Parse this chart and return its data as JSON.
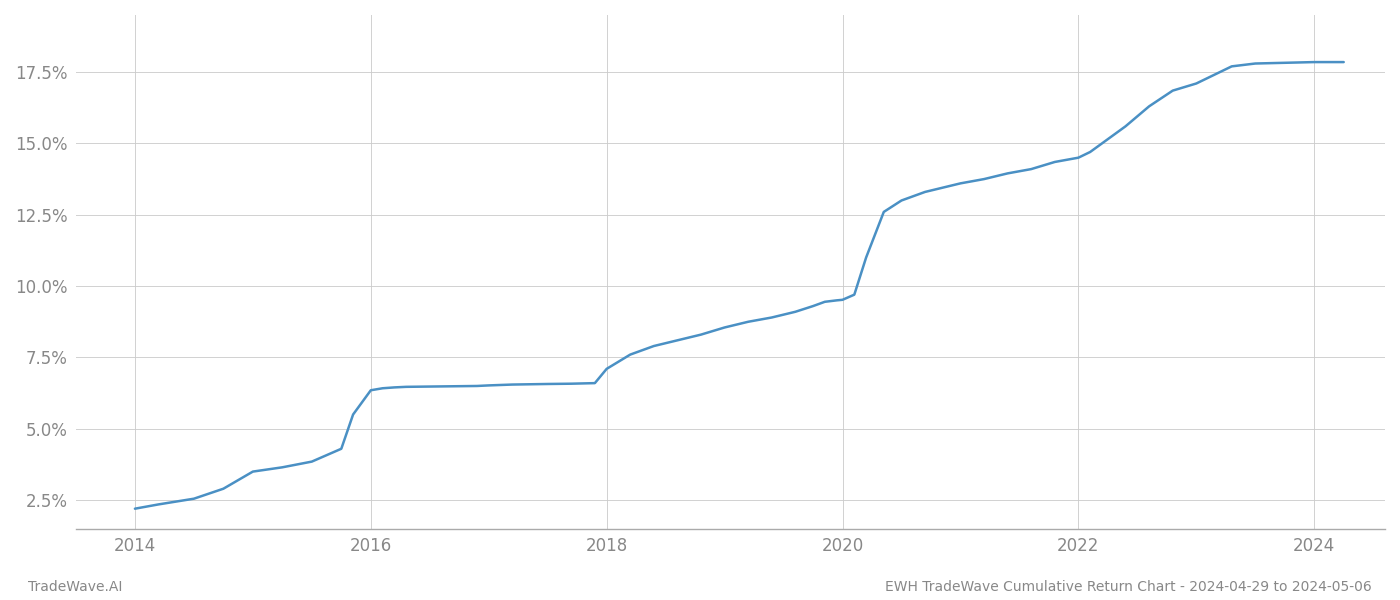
{
  "title": "EWH TradeWave Cumulative Return Chart - 2024-04-29 to 2024-05-06",
  "left_label": "TradeWave.AI",
  "line_color": "#4a90c4",
  "background_color": "#ffffff",
  "grid_color": "#cccccc",
  "x_values": [
    2014.0,
    2014.2,
    2014.5,
    2014.75,
    2015.0,
    2015.25,
    2015.5,
    2015.75,
    2015.85,
    2016.0,
    2016.1,
    2016.2,
    2016.3,
    2016.5,
    2016.7,
    2016.9,
    2017.0,
    2017.2,
    2017.5,
    2017.7,
    2017.9,
    2018.0,
    2018.2,
    2018.4,
    2018.6,
    2018.8,
    2019.0,
    2019.2,
    2019.4,
    2019.6,
    2019.75,
    2019.85,
    2019.95,
    2020.0,
    2020.1,
    2020.2,
    2020.35,
    2020.5,
    2020.7,
    2020.9,
    2021.0,
    2021.2,
    2021.4,
    2021.6,
    2021.8,
    2022.0,
    2022.1,
    2022.2,
    2022.4,
    2022.6,
    2022.8,
    2023.0,
    2023.2,
    2023.3,
    2023.5,
    2023.7,
    2023.9,
    2024.0,
    2024.1,
    2024.25
  ],
  "y_values": [
    2.2,
    2.35,
    2.55,
    2.9,
    3.5,
    3.65,
    3.85,
    4.3,
    5.5,
    6.35,
    6.42,
    6.45,
    6.47,
    6.48,
    6.49,
    6.5,
    6.52,
    6.55,
    6.57,
    6.58,
    6.6,
    7.1,
    7.6,
    7.9,
    8.1,
    8.3,
    8.55,
    8.75,
    8.9,
    9.1,
    9.3,
    9.45,
    9.5,
    9.52,
    9.7,
    11.0,
    12.6,
    13.0,
    13.3,
    13.5,
    13.6,
    13.75,
    13.95,
    14.1,
    14.35,
    14.5,
    14.7,
    15.0,
    15.6,
    16.3,
    16.85,
    17.1,
    17.5,
    17.7,
    17.8,
    17.82,
    17.84,
    17.85,
    17.85,
    17.85
  ],
  "xlim": [
    2013.5,
    2024.6
  ],
  "ylim": [
    1.5,
    19.5
  ],
  "yticks": [
    2.5,
    5.0,
    7.5,
    10.0,
    12.5,
    15.0,
    17.5
  ],
  "xticks": [
    2014,
    2016,
    2018,
    2020,
    2022,
    2024
  ],
  "tick_color": "#888888",
  "line_width": 1.8,
  "figsize": [
    14.0,
    6.0
  ],
  "dpi": 100
}
